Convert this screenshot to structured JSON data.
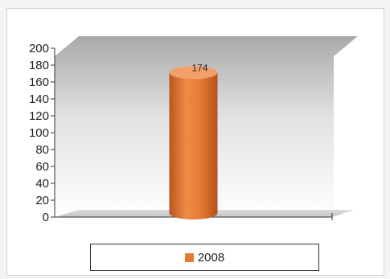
{
  "chart_data": {
    "type": "bar",
    "categories": [
      ""
    ],
    "series": [
      {
        "name": "2008",
        "values": [
          174
        ],
        "color": "#e57a35"
      }
    ],
    "data_labels": [
      "174"
    ],
    "yticks": [
      "0",
      "20",
      "40",
      "60",
      "80",
      "100",
      "120",
      "140",
      "160",
      "180",
      "200"
    ],
    "ylim": [
      0,
      200
    ],
    "title": "",
    "xlabel": "",
    "ylabel": "",
    "legend_position": "bottom",
    "bar_shape": "cylinder",
    "grid": false
  }
}
